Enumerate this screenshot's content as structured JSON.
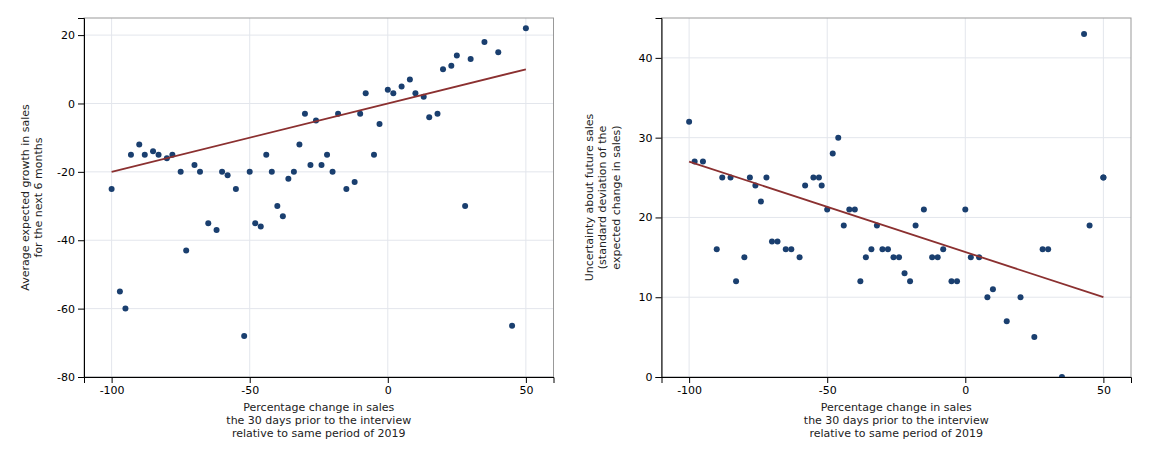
{
  "chart_data": [
    {
      "type": "scatter",
      "xlabel": "Percentage change in sales\nthe 30 days prior to the interview\nrelative to same period of 2019",
      "ylabel": "Average expected growth in sales\nfor the next 6 months",
      "xlim": [
        -110,
        60
      ],
      "ylim": [
        -80,
        25
      ],
      "xticks": [
        -100,
        -50,
        0,
        50
      ],
      "yticks": [
        -80,
        -60,
        -40,
        -20,
        0,
        20
      ],
      "grid": true,
      "series": [
        {
          "type": "scatter",
          "color": "#1a3f6f",
          "x": [
            -100,
            -97,
            -95,
            -93,
            -90,
            -88,
            -85,
            -83,
            -80,
            -78,
            -75,
            -73,
            -70,
            -68,
            -65,
            -62,
            -60,
            -58,
            -55,
            -52,
            -50,
            -48,
            -46,
            -44,
            -42,
            -40,
            -38,
            -36,
            -34,
            -32,
            -30,
            -28,
            -26,
            -24,
            -22,
            -20,
            -18,
            -15,
            -12,
            -10,
            -8,
            -5,
            -3,
            0,
            2,
            5,
            8,
            10,
            13,
            15,
            18,
            20,
            23,
            25,
            28,
            30,
            35,
            40,
            45,
            50
          ],
          "values": [
            -25,
            -55,
            -60,
            -15,
            -12,
            -15,
            -14,
            -15,
            -16,
            -15,
            -20,
            -43,
            -18,
            -20,
            -35,
            -37,
            -20,
            -21,
            -25,
            -68,
            -20,
            -35,
            -36,
            -15,
            -20,
            -30,
            -33,
            -22,
            -20,
            -12,
            -3,
            -18,
            -5,
            -18,
            -15,
            -20,
            -3,
            -25,
            -23,
            -3,
            3,
            -15,
            -6,
            4,
            3,
            5,
            7,
            3,
            2,
            -4,
            -3,
            10,
            11,
            14,
            -30,
            13,
            18,
            15,
            -65,
            22
          ]
        },
        {
          "type": "line",
          "color": "#8b3030",
          "x": [
            -100,
            50
          ],
          "values": [
            -20,
            10
          ]
        }
      ]
    },
    {
      "type": "scatter",
      "xlabel": "Percentage change in sales\nthe 30 days prior to the interview\nrelative to same period of 2019",
      "ylabel": "Uncertainty about future sales\n(standard deviation of the\nexpected change in sales)",
      "xlim": [
        -110,
        60
      ],
      "ylim": [
        0,
        45
      ],
      "xticks": [
        -100,
        -50,
        0,
        50
      ],
      "yticks": [
        0,
        10,
        20,
        30,
        40
      ],
      "grid": true,
      "series": [
        {
          "type": "scatter",
          "color": "#1a3f6f",
          "x": [
            -100,
            -98,
            -95,
            -90,
            -88,
            -85,
            -83,
            -80,
            -78,
            -76,
            -74,
            -72,
            -70,
            -68,
            -65,
            -63,
            -60,
            -58,
            -55,
            -53,
            -52,
            -50,
            -48,
            -46,
            -44,
            -42,
            -40,
            -38,
            -36,
            -34,
            -32,
            -30,
            -28,
            -26,
            -24,
            -22,
            -20,
            -18,
            -15,
            -12,
            -10,
            -8,
            -5,
            -3,
            0,
            2,
            5,
            8,
            10,
            15,
            20,
            25,
            28,
            30,
            35,
            45,
            50,
            43,
            50
          ],
          "values": [
            32,
            27,
            27,
            16,
            25,
            25,
            12,
            15,
            25,
            24,
            22,
            25,
            17,
            17,
            16,
            16,
            15,
            24,
            25,
            25,
            24,
            21,
            28,
            30,
            19,
            21,
            21,
            12,
            15,
            16,
            19,
            16,
            16,
            15,
            15,
            13,
            12,
            19,
            21,
            15,
            15,
            16,
            12,
            12,
            21,
            15,
            15,
            10,
            11,
            7,
            10,
            5,
            16,
            16,
            0,
            19,
            25,
            43,
            25
          ]
        },
        {
          "type": "line",
          "color": "#8b3030",
          "x": [
            -100,
            50
          ],
          "values": [
            27,
            10
          ]
        }
      ]
    }
  ]
}
